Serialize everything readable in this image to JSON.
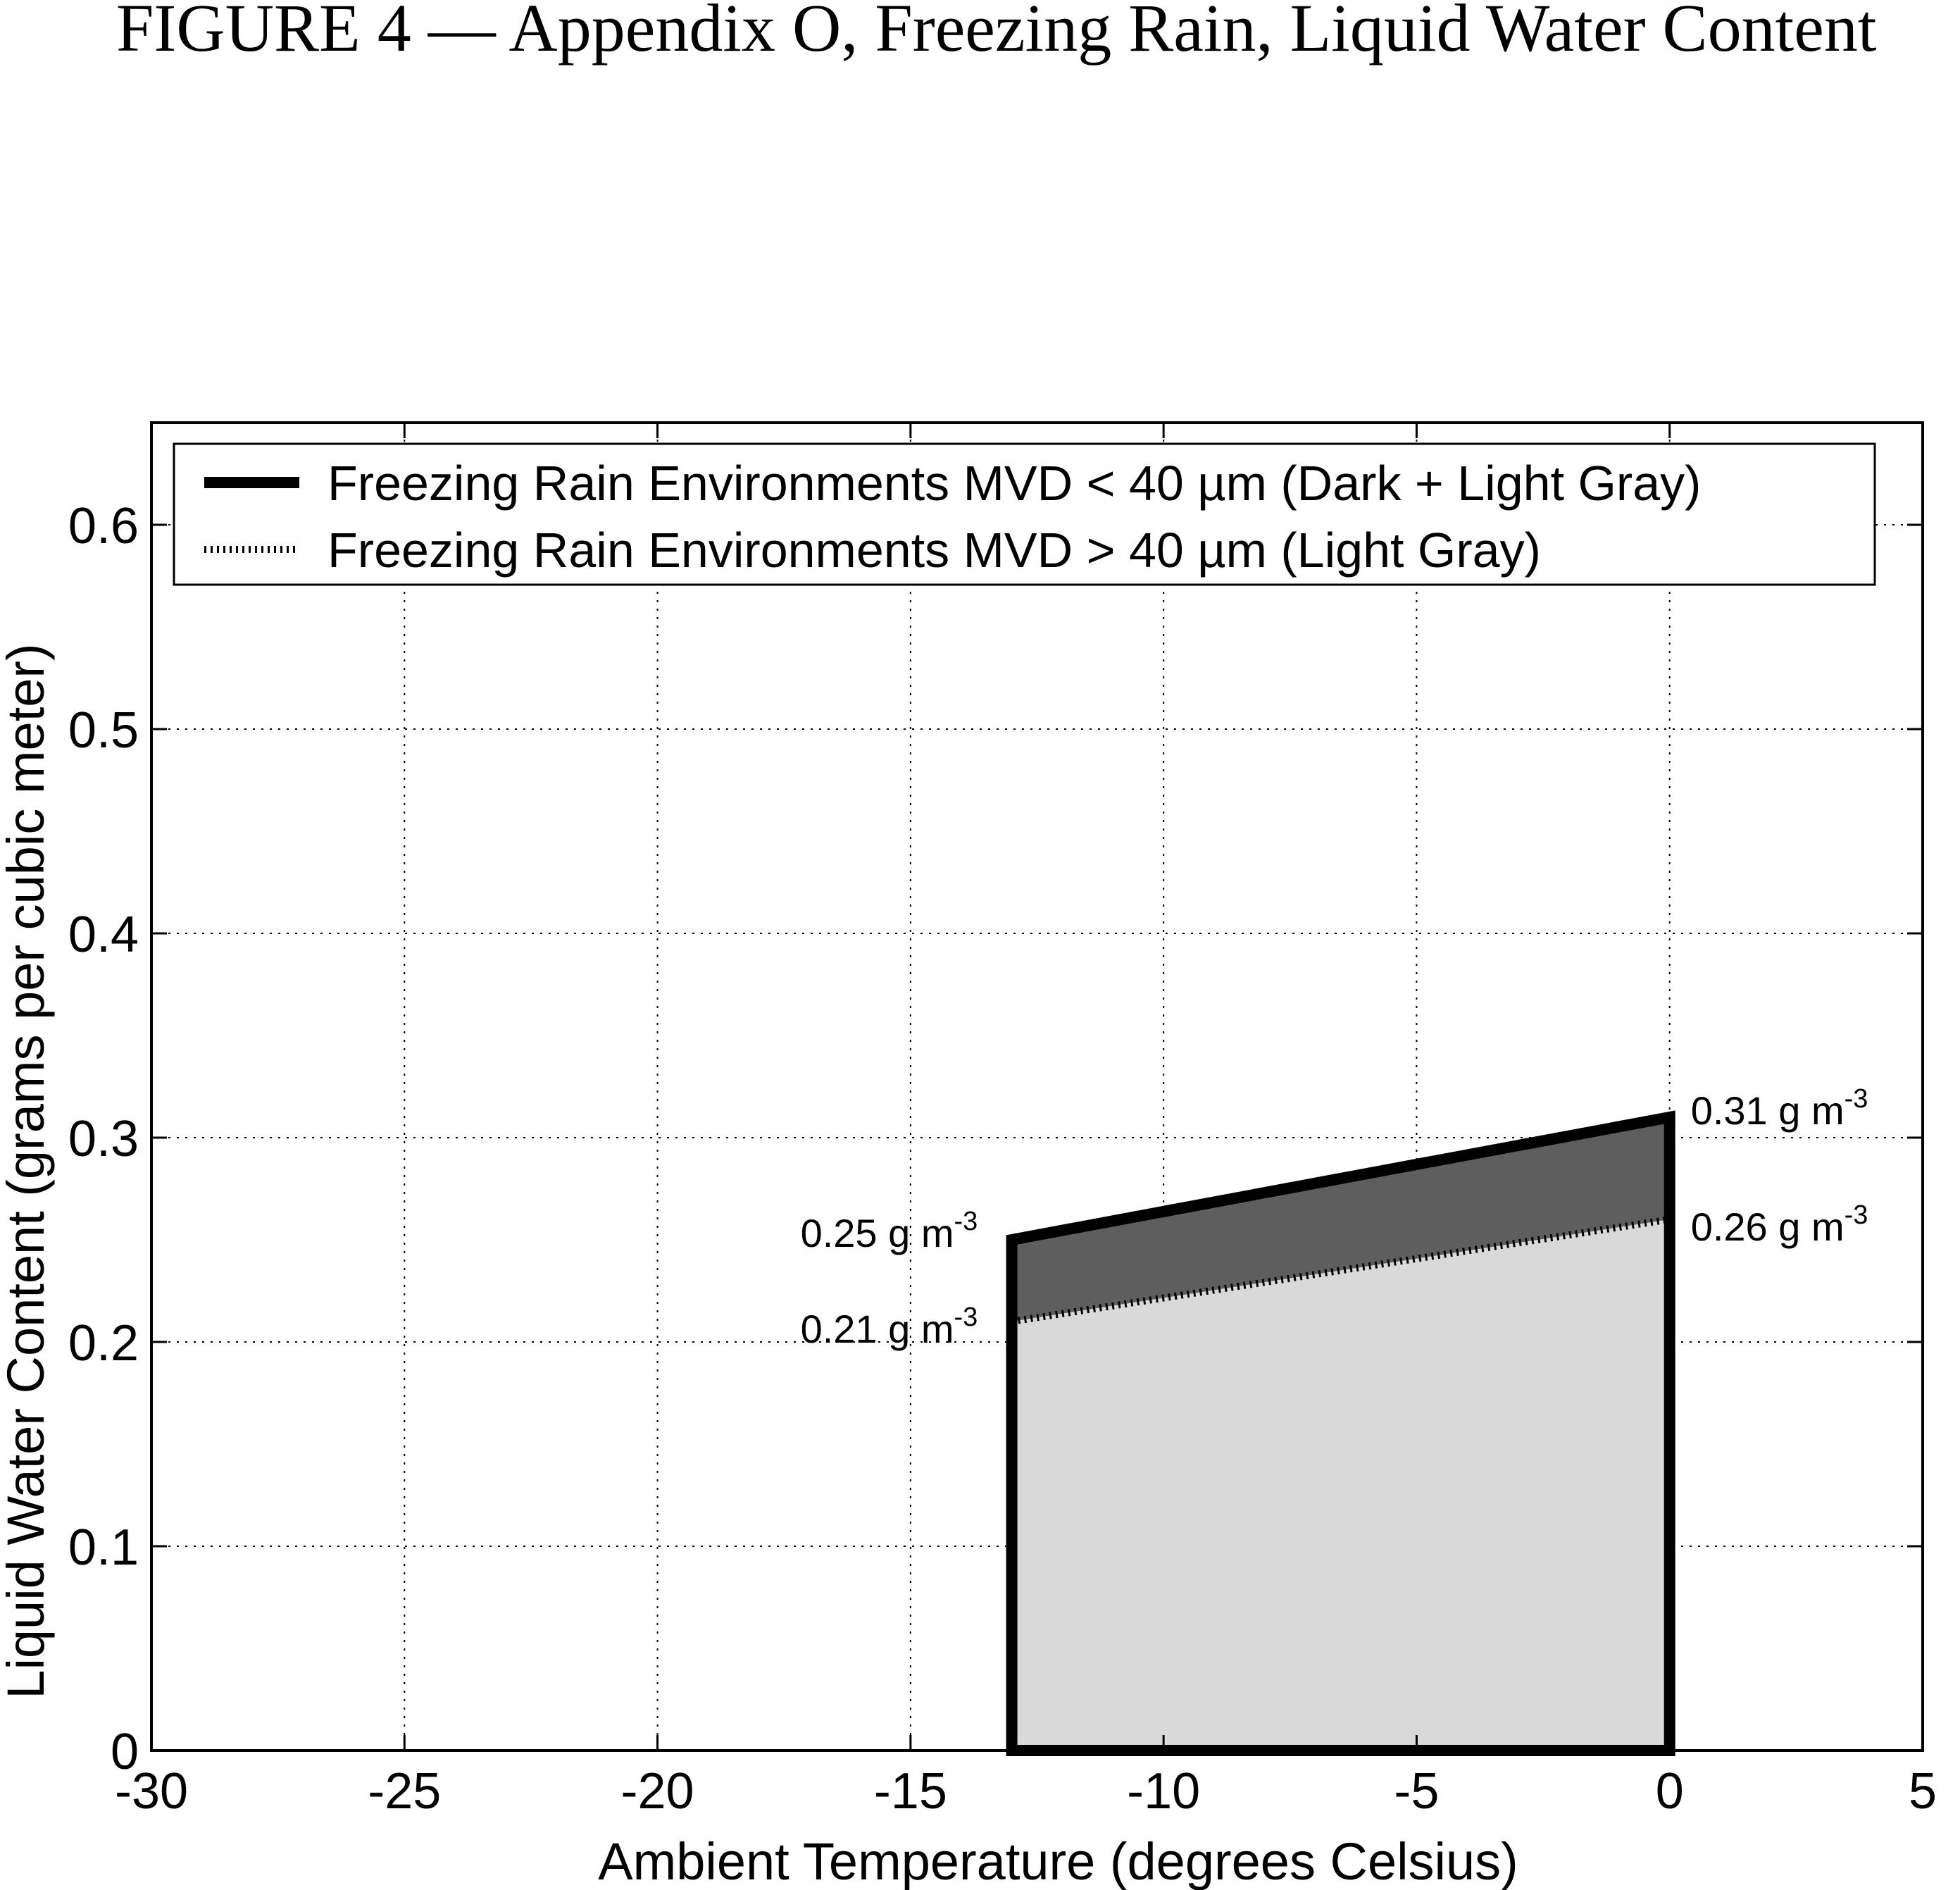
{
  "figure": {
    "caption": "FIGURE 4 — Appendix O, Freezing Rain, Liquid Water Content"
  },
  "chart_data": {
    "type": "area",
    "xlabel": "Ambient Temperature (degrees Celsius)",
    "ylabel": "Liquid Water Content (grams per cubic meter)",
    "xlim": [
      -30,
      5
    ],
    "ylim": [
      0,
      0.65
    ],
    "xticks": [
      -30,
      -25,
      -20,
      -15,
      -10,
      -5,
      0,
      5
    ],
    "yticks": [
      0,
      0.1,
      0.2,
      0.3,
      0.4,
      0.5,
      0.6
    ],
    "xtick_labels": [
      "-30",
      "-25",
      "-20",
      "-15",
      "-10",
      "-5",
      "0",
      "5"
    ],
    "ytick_labels": [
      "0",
      "0.1",
      "0.2",
      "0.3",
      "0.4",
      "0.5",
      "0.6"
    ],
    "grid": true,
    "legend_position": "top",
    "series": [
      {
        "name": "Freezing Rain Environments MVD < 40 µm (Dark + Light Gray)",
        "style": "solid-thick",
        "fill": "#5e5e5e",
        "x": [
          -13,
          0
        ],
        "y": [
          0.25,
          0.31
        ]
      },
      {
        "name": "Freezing Rain Environments MVD > 40 µm (Light Gray)",
        "style": "hatched",
        "fill": "#d9d9d9",
        "x": [
          -13,
          0
        ],
        "y": [
          0.21,
          0.26
        ]
      }
    ],
    "annotations": [
      {
        "base": "0.31 g m",
        "sup": "-3",
        "x": 0,
        "y": 0.31,
        "side": "right"
      },
      {
        "base": "0.26 g m",
        "sup": "-3",
        "x": 0,
        "y": 0.26,
        "side": "right"
      },
      {
        "base": "0.25 g m",
        "sup": "-3",
        "x": -13,
        "y": 0.25,
        "side": "left"
      },
      {
        "base": "0.21 g m",
        "sup": "-3",
        "x": -13,
        "y": 0.21,
        "side": "left"
      }
    ]
  }
}
